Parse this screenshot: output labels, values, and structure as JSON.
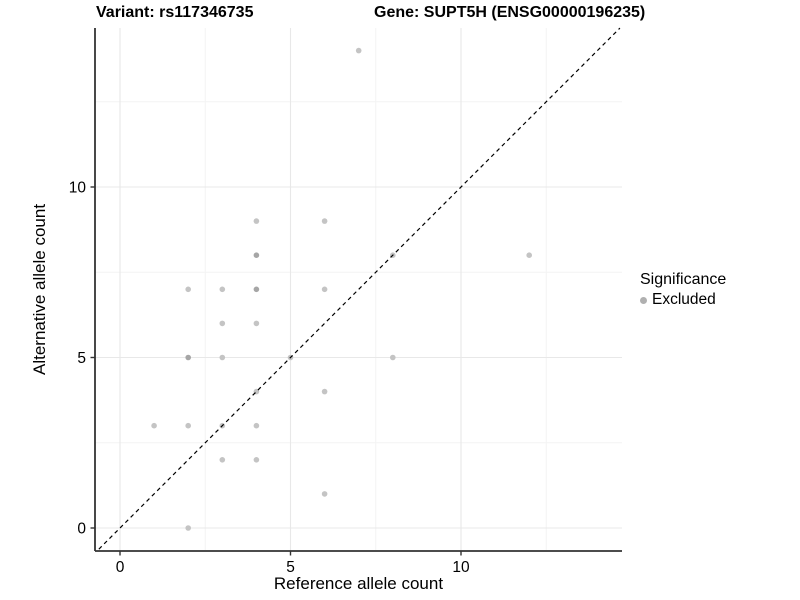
{
  "titles": {
    "left": "Variant: rs117346735",
    "right": "Gene: SUPT5H (ENSG00000196235)"
  },
  "chart_data": {
    "type": "scatter",
    "xlabel": "Reference allele count",
    "ylabel": "Alternative allele count",
    "xlim": [
      -0.73,
      14.72
    ],
    "ylim": [
      -0.67,
      14.66
    ],
    "x_ticks": [
      0,
      5,
      10
    ],
    "y_ticks": [
      0,
      5,
      10
    ],
    "x_tick_labels": [
      "0",
      "5",
      "10"
    ],
    "y_tick_labels": [
      "0",
      "5",
      "10"
    ],
    "x_minor_ticks": [
      2.5,
      7.5,
      12.5
    ],
    "y_minor_ticks": [
      2.5,
      7.5,
      12.5
    ],
    "grid": "major-and-minor",
    "points": [
      [
        1,
        3
      ],
      [
        2,
        0
      ],
      [
        2,
        3
      ],
      [
        2,
        5
      ],
      [
        2,
        7
      ],
      [
        3,
        2
      ],
      [
        3,
        3
      ],
      [
        3,
        5
      ],
      [
        3,
        6
      ],
      [
        3,
        7
      ],
      [
        4,
        2
      ],
      [
        4,
        3
      ],
      [
        4,
        4
      ],
      [
        4,
        6
      ],
      [
        4,
        7
      ],
      [
        4,
        8
      ],
      [
        4,
        9
      ],
      [
        5,
        5
      ],
      [
        6,
        1
      ],
      [
        6,
        4
      ],
      [
        6,
        7
      ],
      [
        6,
        9
      ],
      [
        7,
        14
      ],
      [
        8,
        5
      ],
      [
        8,
        8
      ],
      [
        12,
        8
      ]
    ],
    "overplotted_points": [
      [
        2,
        5
      ],
      [
        4,
        7
      ],
      [
        4,
        8
      ]
    ],
    "identity_line": {
      "slope": 1,
      "intercept": 0,
      "style": "dashed"
    },
    "series_name": "Excluded",
    "legend": {
      "position": "right",
      "title": "Significance",
      "items": [
        {
          "label": "Excluded",
          "marker_color": "#b0b0b0"
        }
      ]
    },
    "colors": {
      "point": "#c4c4c4",
      "point_overlap": "#a6a6a6",
      "grid_major": "#e8e8e8",
      "grid_minor": "#f4f4f4",
      "axis": "#333333",
      "identity_line": "#000000",
      "text": "#000000"
    }
  }
}
